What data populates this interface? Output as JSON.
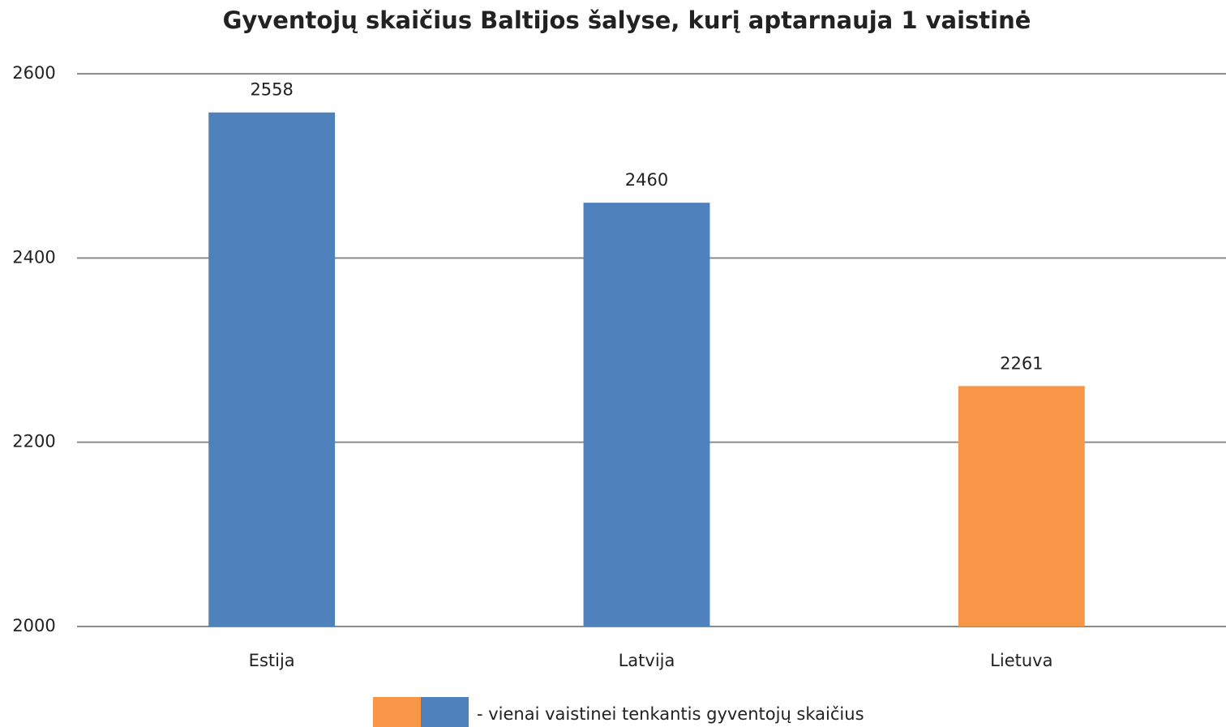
{
  "chart_data": {
    "type": "bar",
    "title": "Gyventojų skaičius Baltijos šalyse, kurį aptarnauja 1 vaistinė",
    "categories": [
      "Estija",
      "Latvija",
      "Lietuva"
    ],
    "series": [
      {
        "name": "- vienai vaistinei tenkantis gyventojų skaičius",
        "values": [
          2558,
          2460,
          2261
        ],
        "colors": [
          "#4f81bd",
          "#4f81bd",
          "#f79646"
        ]
      }
    ],
    "legend_colors": [
      "#f79646",
      "#4f81bd"
    ],
    "ylim": [
      2000,
      2600
    ],
    "yticks": [
      2000,
      2200,
      2400,
      2600
    ],
    "grid": true
  }
}
